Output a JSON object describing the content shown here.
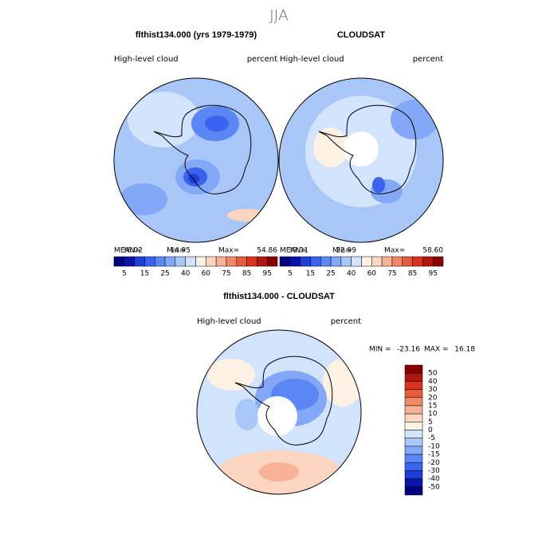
{
  "header": {
    "title": "JJA"
  },
  "panels": [
    {
      "title": "flthist134.000 (yrs 1979-1979)",
      "left": "High-level cloud",
      "right": "percent",
      "stats": [
        {
          "label": "MEAN=",
          "value": "36.02"
        },
        {
          "label": "Min=",
          "value": "14.95"
        },
        {
          "label": "Max=",
          "value": "54.86"
        }
      ]
    },
    {
      "title": "CLOUDSAT",
      "left": "High-level cloud",
      "right": "percent",
      "stats": [
        {
          "label": "MEAN=",
          "value": "39.31"
        },
        {
          "label": "Min=",
          "value": "22.99"
        },
        {
          "label": "Max=",
          "value": "58.60"
        }
      ]
    },
    {
      "title": "flthist134.000 - CLOUDSAT",
      "left": "High-level cloud",
      "right": "percent",
      "stats": [
        {
          "label": "MIN =",
          "value": "-23.16"
        },
        {
          "label": "MAX =",
          "value": "16.18"
        }
      ]
    }
  ],
  "colorbar": {
    "labels": [
      "5",
      "15",
      "25",
      "40",
      "60",
      "75",
      "85",
      "95"
    ],
    "colors": [
      "#00007f",
      "#0a14a8",
      "#1f3fd8",
      "#3a63ef",
      "#5b87f4",
      "#82a8f7",
      "#a9c6f9",
      "#d2e3fc",
      "#fdf1e3",
      "#fbd5bf",
      "#f7b197",
      "#f2886a",
      "#ea5a3a",
      "#d8331f",
      "#b0170e",
      "#880000"
    ]
  },
  "diff_colorbar": {
    "labels": [
      "50",
      "40",
      "30",
      "20",
      "15",
      "10",
      "5",
      "0",
      "-5",
      "-10",
      "-15",
      "-20",
      "-30",
      "-40",
      "-50"
    ]
  }
}
